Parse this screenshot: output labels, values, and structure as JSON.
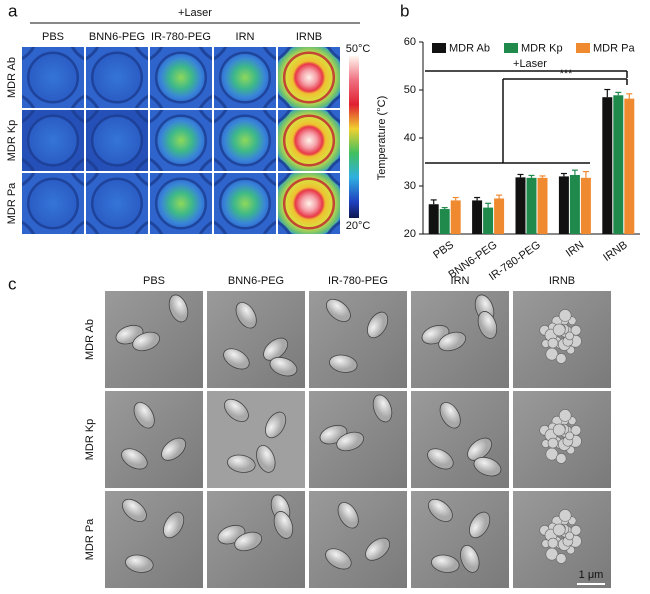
{
  "panel_a": {
    "label": "a",
    "laser": "+Laser",
    "columns": [
      "PBS",
      "BNN6-PEG",
      "IR-780-PEG",
      "IRN",
      "IRNB"
    ],
    "rows": [
      "MDR Ab",
      "MDR Kp",
      "MDR Pa"
    ],
    "colorbar_max": "50°C",
    "colorbar_min": "20°C"
  },
  "chart_data": {
    "type": "bar",
    "panel_label": "b",
    "ylabel": "Temperature (°C)",
    "categories": [
      "PBS",
      "BNN6-PEG",
      "IR-780-PEG",
      "IRN",
      "IRNB"
    ],
    "series": [
      {
        "name": "MDR Ab",
        "color": "#111111",
        "values": [
          26.2,
          27.0,
          31.8,
          32.0,
          48.5
        ],
        "errors": [
          0.9,
          0.6,
          0.6,
          0.6,
          1.6
        ]
      },
      {
        "name": "MDR Kp",
        "color": "#1f8a4c",
        "values": [
          25.2,
          25.5,
          31.7,
          32.3,
          48.9
        ],
        "errors": [
          0.3,
          0.9,
          0.5,
          1.0,
          0.6
        ]
      },
      {
        "name": "MDR Pa",
        "color": "#f08a30",
        "values": [
          27.0,
          27.4,
          31.7,
          31.7,
          48.2
        ],
        "errors": [
          0.6,
          0.7,
          0.4,
          1.3,
          1.0
        ]
      }
    ],
    "ylim": [
      20,
      60
    ],
    "yticks": [
      20,
      30,
      40,
      50,
      60
    ],
    "annotations": [
      "+Laser",
      "***"
    ]
  },
  "panel_c": {
    "label": "c",
    "columns": [
      "PBS",
      "BNN6-PEG",
      "IR-780-PEG",
      "IRN",
      "IRNB"
    ],
    "rows": [
      "MDR Ab",
      "MDR Kp",
      "MDR Pa"
    ],
    "scale_bar": "1 μm"
  }
}
